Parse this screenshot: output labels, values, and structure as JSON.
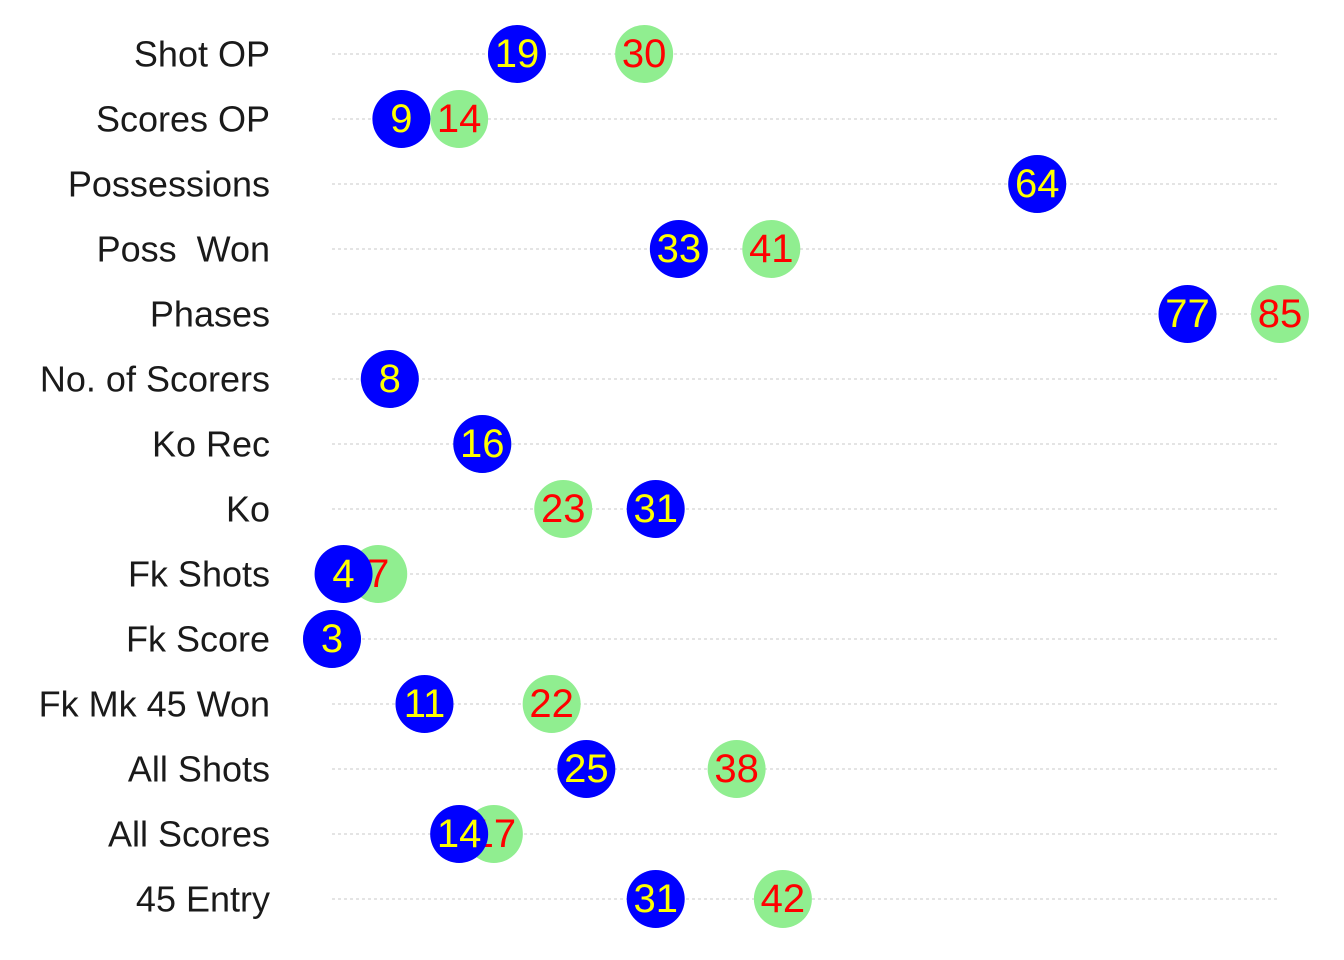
{
  "chart_data": {
    "type": "scatter",
    "title": "",
    "xlabel": "",
    "ylabel": "",
    "categories": [
      "Shot OP",
      "Scores OP",
      "Possessions",
      "Poss  Won",
      "Phases",
      "No. of Scorers",
      "Ko Rec",
      "Ko",
      "Fk Shots",
      "Fk Score",
      "Fk Mk 45 Won",
      "All Shots",
      "All Scores",
      "45 Entry"
    ],
    "xlim": [
      3,
      85
    ],
    "grid": "horizontal dashed",
    "legend": "none",
    "series": [
      {
        "color": "#90ee90",
        "label_color": "#ff0000",
        "values": [
          30,
          14,
          64,
          41,
          85,
          8,
          16,
          23,
          7,
          3,
          22,
          38,
          17,
          42
        ]
      },
      {
        "color": "#0000ff",
        "label_color": "#ffff00",
        "values": [
          19,
          9,
          64,
          33,
          77,
          8,
          16,
          31,
          4,
          3,
          11,
          25,
          14,
          31
        ]
      }
    ]
  }
}
